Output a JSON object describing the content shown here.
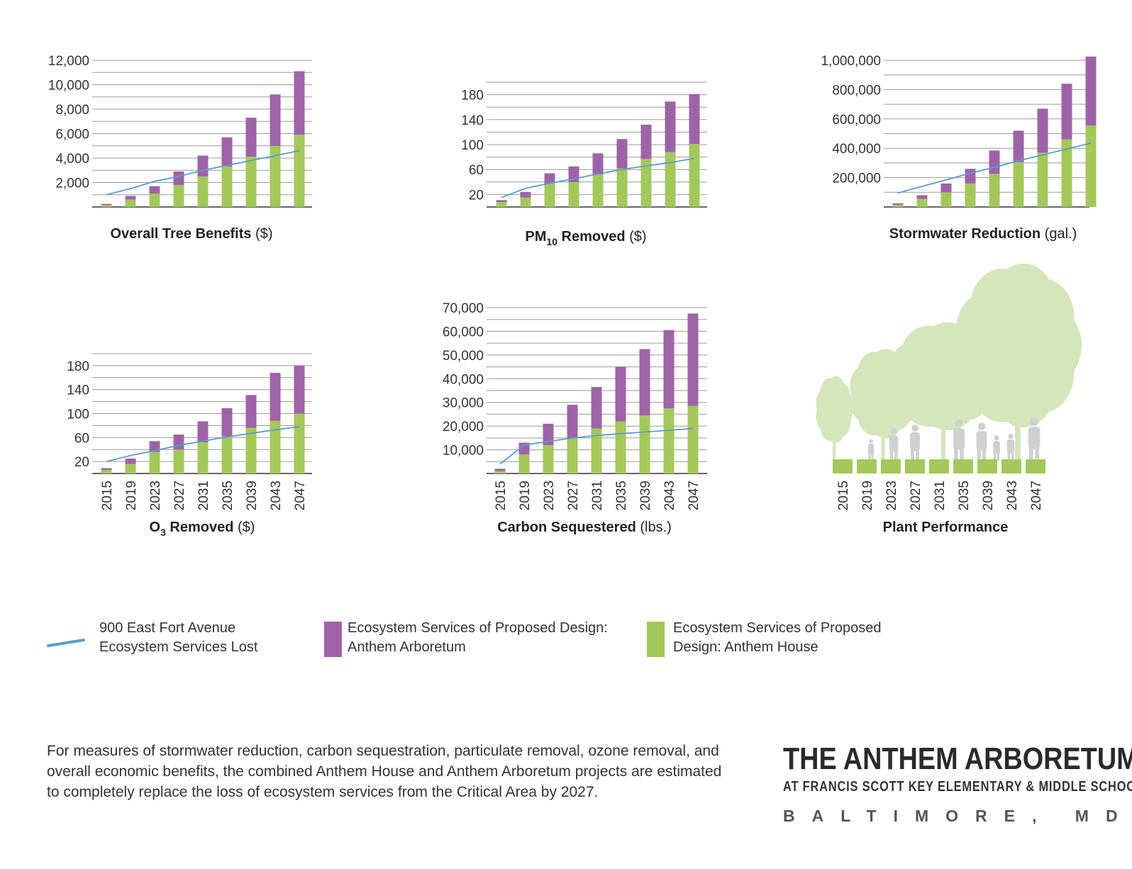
{
  "colors": {
    "green": "#a3c85a",
    "purple": "#9e63a6",
    "line": "#5b9bd0",
    "grid": "#9a9a9a",
    "tree": "#d5e6bd",
    "people": "#d0d0d0"
  },
  "years": [
    "2015",
    "2019",
    "2023",
    "2027",
    "2031",
    "2035",
    "2039",
    "2043",
    "2047"
  ],
  "chart_data": [
    {
      "id": "overall",
      "type": "bar",
      "stacked": true,
      "title_bold": "Overall Tree Benefits",
      "title_unit": "($)",
      "categories": [
        "2015",
        "2019",
        "2023",
        "2027",
        "2031",
        "2035",
        "2039",
        "2043",
        "2047"
      ],
      "ylim": [
        0,
        12000
      ],
      "yticks": [
        2000,
        4000,
        6000,
        8000,
        10000,
        12000
      ],
      "ytick_labels": [
        "2,000",
        "4,000",
        "6,000",
        "8,000",
        "10,000",
        "12,000"
      ],
      "series": [
        {
          "name": "Ecosystem Services of Proposed Design: Anthem House",
          "values": [
            150,
            600,
            1100,
            1800,
            2500,
            3300,
            4100,
            5000,
            5900
          ]
        },
        {
          "name": "Ecosystem Services of Proposed Design: Anthem Arboretum",
          "values": [
            100,
            300,
            600,
            1100,
            1700,
            2400,
            3200,
            4200,
            5200
          ]
        }
      ],
      "line": {
        "name": "900 East Fort Avenue Ecosystem Services Lost",
        "values": [
          1000,
          1500,
          2100,
          2500,
          3000,
          3400,
          3800,
          4200,
          4600
        ]
      }
    },
    {
      "id": "pm10",
      "type": "bar",
      "stacked": true,
      "title_bold": "PM",
      "title_sub": "10",
      "title_bold2": " Removed",
      "title_unit": "($)",
      "categories": [
        "2015",
        "2019",
        "2023",
        "2027",
        "2031",
        "2035",
        "2039",
        "2043",
        "2047"
      ],
      "ylim": [
        0,
        200
      ],
      "yticks": [
        20,
        60,
        100,
        140,
        180
      ],
      "ytick_labels": [
        "20",
        "60",
        "100",
        "140",
        "180"
      ],
      "series": [
        {
          "name": "Ecosystem Services of Proposed Design: Anthem House",
          "values": [
            8,
            15,
            38,
            40,
            52,
            62,
            77,
            88,
            101
          ]
        },
        {
          "name": "Ecosystem Services of Proposed Design: Anthem Arboretum",
          "values": [
            3,
            9,
            16,
            25,
            34,
            47,
            55,
            81,
            80
          ]
        }
      ],
      "line": {
        "name": "900 East Fort Avenue Ecosystem Services Lost",
        "values": [
          15,
          30,
          38,
          45,
          53,
          60,
          66,
          71,
          78
        ]
      }
    },
    {
      "id": "stormwater",
      "type": "bar",
      "stacked": true,
      "title_bold": "Stormwater Reduction",
      "title_unit": "(gal.)",
      "categories": [
        "2015",
        "2019",
        "2023",
        "2027",
        "2031",
        "2035",
        "2039",
        "2043",
        "2047"
      ],
      "ylim": [
        0,
        1000000
      ],
      "yticks": [
        200000,
        400000,
        600000,
        800000,
        1000000
      ],
      "ytick_labels": [
        "200,000",
        "400,000",
        "600,000",
        "800,000",
        "1,000,000"
      ],
      "series": [
        {
          "name": "Ecosystem Services of Proposed Design: Anthem House",
          "values": [
            15000,
            55000,
            100000,
            160000,
            225000,
            305000,
            370000,
            460000,
            555000
          ]
        },
        {
          "name": "Ecosystem Services of Proposed Design: Anthem Arboretum",
          "values": [
            10000,
            25000,
            60000,
            100000,
            160000,
            215000,
            300000,
            380000,
            470000
          ]
        }
      ],
      "line": {
        "name": "900 East Fort Avenue Ecosystem Services Lost",
        "values": [
          95000,
          140000,
          185000,
          230000,
          270000,
          315000,
          355000,
          395000,
          435000
        ]
      }
    },
    {
      "id": "o3",
      "type": "bar",
      "stacked": true,
      "title_bold": "O",
      "title_sub": "3",
      "title_bold2": " Removed",
      "title_unit": "($)",
      "categories": [
        "2015",
        "2019",
        "2023",
        "2027",
        "2031",
        "2035",
        "2039",
        "2043",
        "2047"
      ],
      "ylim": [
        0,
        200
      ],
      "yticks": [
        20,
        60,
        100,
        140,
        180
      ],
      "ytick_labels": [
        "20",
        "60",
        "100",
        "140",
        "180"
      ],
      "series": [
        {
          "name": "Ecosystem Services of Proposed Design: Anthem House",
          "values": [
            6,
            16,
            36,
            40,
            52,
            62,
            76,
            88,
            100
          ]
        },
        {
          "name": "Ecosystem Services of Proposed Design: Anthem Arboretum",
          "values": [
            3,
            9,
            18,
            25,
            35,
            47,
            55,
            80,
            80
          ]
        }
      ],
      "line": {
        "name": "900 East Fort Avenue Ecosystem Services Lost",
        "values": [
          20,
          30,
          38,
          47,
          54,
          61,
          67,
          73,
          78
        ]
      }
    },
    {
      "id": "carbon",
      "type": "bar",
      "stacked": true,
      "title_bold": "Carbon Sequestered",
      "title_unit": "(lbs.)",
      "categories": [
        "2015",
        "2019",
        "2023",
        "2027",
        "2031",
        "2035",
        "2039",
        "2043",
        "2047"
      ],
      "ylim": [
        0,
        70000
      ],
      "yticks": [
        10000,
        20000,
        30000,
        40000,
        50000,
        60000,
        70000
      ],
      "ytick_labels": [
        "10,000",
        "20,000",
        "30,000",
        "40,000",
        "50,000",
        "60,000",
        "70,000"
      ],
      "series": [
        {
          "name": "Ecosystem Services of Proposed Design: Anthem House",
          "values": [
            1000,
            8000,
            12000,
            15000,
            19000,
            22000,
            24500,
            27500,
            28500
          ]
        },
        {
          "name": "Ecosystem Services of Proposed Design: Anthem Arboretum",
          "values": [
            1000,
            5000,
            9000,
            14000,
            17500,
            23000,
            28000,
            33000,
            39000
          ]
        }
      ],
      "line": {
        "name": "900 East Fort Avenue Ecosystem Services Lost",
        "values": [
          4000,
          12000,
          13500,
          15000,
          16000,
          16800,
          17500,
          18200,
          19000
        ]
      }
    }
  ],
  "plant_performance": {
    "title": "Plant Performance",
    "categories": [
      "2015",
      "2019",
      "2023",
      "2027",
      "2031",
      "2035",
      "2039",
      "2043",
      "2047"
    ]
  },
  "legend": {
    "line_label_1": "900 East Fort Avenue",
    "line_label_2": "Ecosystem Services Lost",
    "purple_label_1": "Ecosystem Services of Proposed Design:",
    "purple_label_2": "Anthem Arboretum",
    "green_label_1": "Ecosystem Services of Proposed",
    "green_label_2": "Design: Anthem House"
  },
  "footnote": "For measures of stormwater reduction, carbon sequestration, particulate removal, ozone removal, and overall economic benefits, the combined Anthem House and Anthem Arboretum projects are estimated to completely replace the loss of ecosystem services from the Critical Area by 2027.",
  "brand": {
    "title": "THE ANTHEM ARBORETUM",
    "subtitle": "AT FRANCIS SCOTT KEY ELEMENTARY & MIDDLE SCHOOL",
    "city": "BALTIMORE, MD"
  }
}
